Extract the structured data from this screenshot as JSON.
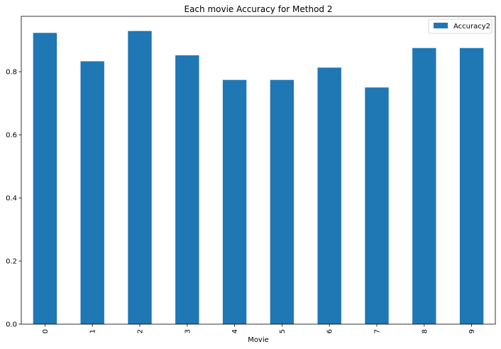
{
  "chart_data": {
    "type": "bar",
    "title": "Each movie Accuracy for Method 2",
    "xlabel": "Movie",
    "ylabel": "",
    "categories": [
      "0",
      "1",
      "2",
      "3",
      "4",
      "5",
      "6",
      "7",
      "8",
      "9"
    ],
    "series": [
      {
        "name": "Accuracy2",
        "color": "#1f77b4",
        "values": [
          0.923,
          0.833,
          0.929,
          0.852,
          0.774,
          0.774,
          0.813,
          0.75,
          0.875,
          0.875
        ]
      }
    ],
    "ylim": [
      0,
      0.9755
    ],
    "yticks": [
      0.0,
      0.2,
      0.4,
      0.6,
      0.8
    ],
    "ytick_labels": [
      "0.0",
      "0.2",
      "0.4",
      "0.6",
      "0.8"
    ],
    "grid": false,
    "legend_position": "top-right"
  }
}
